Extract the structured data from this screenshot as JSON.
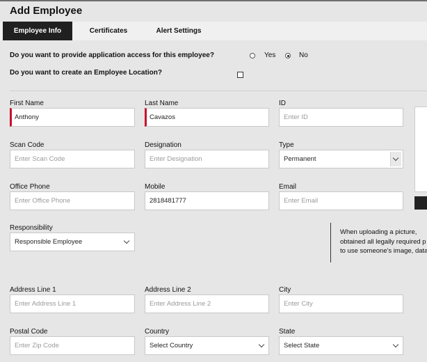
{
  "page": {
    "title": "Add Employee"
  },
  "tabs": [
    {
      "label": "Employee Info",
      "active": true
    },
    {
      "label": "Certificates",
      "active": false
    },
    {
      "label": "Alert Settings",
      "active": false
    }
  ],
  "app_access": {
    "question": "Do you want to provide application access for this employee?",
    "options": [
      "Yes",
      "No"
    ],
    "selected": "No"
  },
  "employee_location": {
    "question": "Do you want to create an Employee Location?",
    "checked": false
  },
  "form": {
    "first_name": {
      "label": "First Name",
      "value": "Anthony"
    },
    "last_name": {
      "label": "Last Name",
      "value": "Cavazos"
    },
    "id": {
      "label": "ID",
      "placeholder": "Enter ID"
    },
    "scan_code": {
      "label": "Scan Code",
      "placeholder": "Enter Scan Code"
    },
    "designation": {
      "label": "Designation",
      "placeholder": "Enter Designation"
    },
    "type": {
      "label": "Type",
      "value": "Permanent"
    },
    "office_phone": {
      "label": "Office Phone",
      "placeholder": "Enter Office Phone"
    },
    "mobile": {
      "label": "Mobile",
      "value": "2818481777"
    },
    "email": {
      "label": "Email",
      "placeholder": "Enter Email"
    },
    "responsibility": {
      "label": "Responsibility",
      "value": "Responsible Employee"
    },
    "address_line_1": {
      "label": "Address Line 1",
      "placeholder": "Enter Address Line 1"
    },
    "address_line_2": {
      "label": "Address Line 2",
      "placeholder": "Enter Address Line 2"
    },
    "city": {
      "label": "City",
      "placeholder": "Enter City"
    },
    "postal_code": {
      "label": "Postal Code",
      "placeholder": "Enter Zip Code"
    },
    "country": {
      "label": "Country",
      "value": "Select Country"
    },
    "state": {
      "label": "State",
      "value": "Select State"
    }
  },
  "photo_notice": {
    "lines": [
      "When uploading a picture,",
      "obtained all legally required p",
      "to use someone's image, data"
    ]
  },
  "colors": {
    "required_marker": "#c8102e",
    "active_tab": "#202020"
  }
}
